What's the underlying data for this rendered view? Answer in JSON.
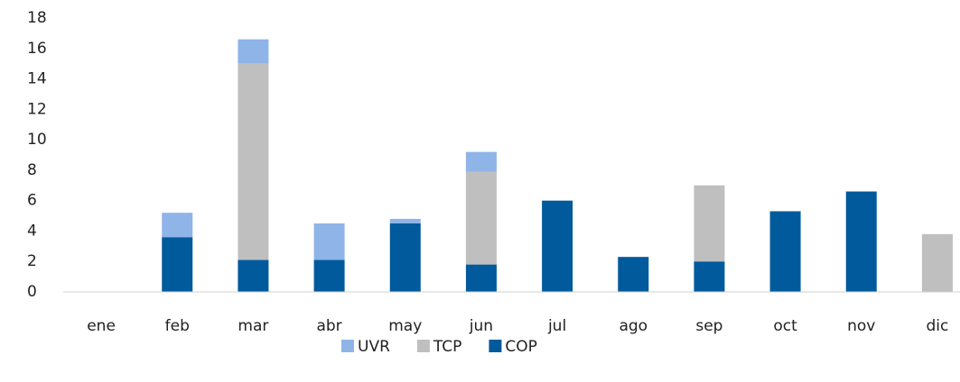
{
  "chart_data": {
    "type": "stacked-bar",
    "categories": [
      "ene",
      "feb",
      "mar",
      "abr",
      "may",
      "jun",
      "jul",
      "ago",
      "sep",
      "oct",
      "nov",
      "dic"
    ],
    "series": [
      {
        "name": "COP",
        "color": "#005a9c",
        "values": [
          0,
          3.6,
          2.1,
          2.1,
          4.5,
          1.8,
          6.0,
          2.3,
          2.0,
          5.3,
          6.6,
          0
        ]
      },
      {
        "name": "TCP",
        "color": "#bfbfbf",
        "values": [
          0,
          0,
          12.9,
          0,
          0,
          6.1,
          0,
          0,
          5.0,
          0,
          0,
          3.8
        ]
      },
      {
        "name": "UVR",
        "color": "#8fb4e8",
        "values": [
          0,
          1.6,
          1.6,
          2.4,
          0.3,
          1.3,
          0,
          0,
          0,
          0,
          0,
          0
        ]
      }
    ],
    "legend_order": [
      "UVR",
      "TCP",
      "COP"
    ],
    "ylim": [
      0,
      18
    ],
    "yticks": [
      0,
      2,
      4,
      6,
      8,
      10,
      12,
      14,
      16,
      18
    ],
    "grid": false
  }
}
